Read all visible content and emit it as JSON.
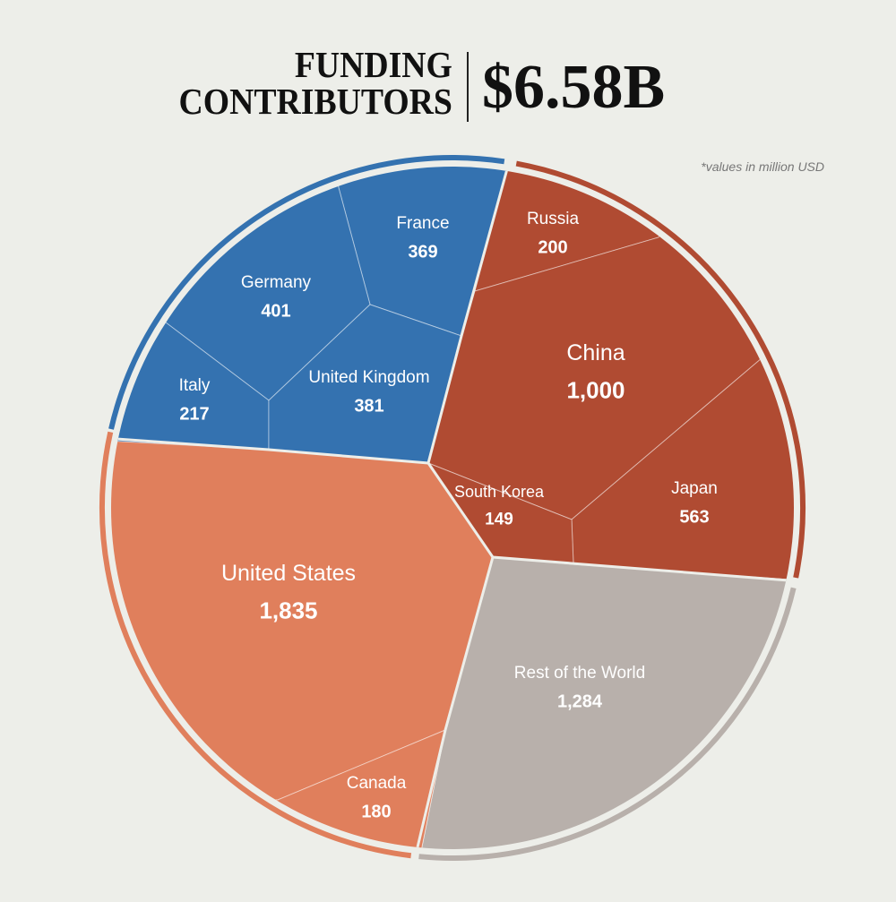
{
  "title": {
    "line1": "FUNDING",
    "line2": "CONTRIBUTORS",
    "total": "$6.58B"
  },
  "note": "*values in million USD",
  "chart_data": {
    "type": "voronoi-treemap",
    "unit": "million USD",
    "groups": [
      {
        "color": "#3472b0",
        "items": [
          {
            "label": "France",
            "value": 369,
            "display": "369"
          },
          {
            "label": "Germany",
            "value": 401,
            "display": "401"
          },
          {
            "label": "Italy",
            "value": 217,
            "display": "217"
          },
          {
            "label": "United Kingdom",
            "value": 381,
            "display": "381"
          }
        ]
      },
      {
        "color": "#b04b32",
        "items": [
          {
            "label": "Russia",
            "value": 200,
            "display": "200"
          },
          {
            "label": "China",
            "value": 1000,
            "display": "1,000"
          },
          {
            "label": "Japan",
            "value": 563,
            "display": "563"
          },
          {
            "label": "South Korea",
            "value": 149,
            "display": "149"
          }
        ]
      },
      {
        "color": "#b8b0ab",
        "items": [
          {
            "label": "Rest of the World",
            "value": 1284,
            "display": "1,284"
          }
        ]
      },
      {
        "color": "#e07f5c",
        "items": [
          {
            "label": "United States",
            "value": 1835,
            "display": "1,835"
          },
          {
            "label": "Canada",
            "value": 180,
            "display": "180"
          }
        ]
      }
    ]
  }
}
